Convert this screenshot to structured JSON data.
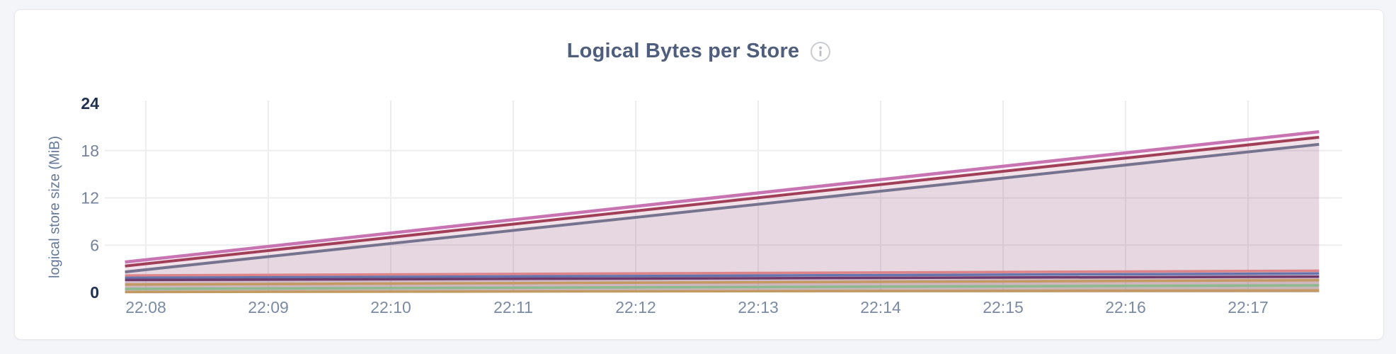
{
  "page": {
    "background": "#f4f5f8",
    "card_background": "#ffffff",
    "card_border": "#e7e7ec"
  },
  "header": {
    "title": "Logical Bytes per Store",
    "info_icon": "info"
  },
  "chart_data": {
    "type": "area",
    "title": "Logical Bytes per Store",
    "ylabel": "logical store size (MiB)",
    "xlabel": "",
    "ylim": [
      0,
      24
    ],
    "grid": true,
    "legend": "none",
    "fill_alpha": 0.09,
    "gridline_color": "#ededf0",
    "x_unit": "time (HH:MM), 1 minute per tick",
    "y_ticks": [
      {
        "value": 24,
        "emphasis": true
      },
      {
        "value": 18,
        "emphasis": false
      },
      {
        "value": 12,
        "emphasis": false
      },
      {
        "value": 6,
        "emphasis": false
      },
      {
        "value": 0,
        "emphasis": true
      }
    ],
    "y_gridlines": [
      18,
      12,
      6
    ],
    "x_ticks": [
      {
        "label": "22:08",
        "t": 0
      },
      {
        "label": "22:09",
        "t": 1
      },
      {
        "label": "22:10",
        "t": 2
      },
      {
        "label": "22:11",
        "t": 3
      },
      {
        "label": "22:12",
        "t": 4
      },
      {
        "label": "22:13",
        "t": 5
      },
      {
        "label": "22:14",
        "t": 6
      },
      {
        "label": "22:15",
        "t": 7
      },
      {
        "label": "22:16",
        "t": 8
      },
      {
        "label": "22:17",
        "t": 9
      }
    ],
    "data_window": {
      "t_start": -0.17,
      "t_end": 9.58
    },
    "series": [
      {
        "name": "series-1-pink",
        "color": "#c874b3",
        "stroke_width": 4.5,
        "points": [
          {
            "t": -0.17,
            "mib": 3.85
          },
          {
            "t": 9.58,
            "mib": 20.4
          }
        ]
      },
      {
        "name": "series-2-maroon",
        "color": "#a23f58",
        "stroke_width": 4.0,
        "points": [
          {
            "t": -0.17,
            "mib": 3.35
          },
          {
            "t": 9.58,
            "mib": 19.7
          }
        ]
      },
      {
        "name": "series-3-slate",
        "color": "#76738f",
        "stroke_width": 4.0,
        "points": [
          {
            "t": -0.17,
            "mib": 2.6
          },
          {
            "t": 9.58,
            "mib": 18.8
          }
        ]
      },
      {
        "name": "series-4-salmon",
        "color": "#dd8489",
        "stroke_width": 3.5,
        "points": [
          {
            "t": -0.17,
            "mib": 2.15
          },
          {
            "t": 9.58,
            "mib": 2.75
          }
        ]
      },
      {
        "name": "series-5-blue",
        "color": "#6674ae",
        "stroke_width": 3.5,
        "points": [
          {
            "t": -0.17,
            "mib": 1.85
          },
          {
            "t": 9.58,
            "mib": 2.4
          }
        ]
      },
      {
        "name": "series-6-plum",
        "color": "#6f3a69",
        "stroke_width": 3.5,
        "points": [
          {
            "t": -0.17,
            "mib": 1.58
          },
          {
            "t": 9.58,
            "mib": 2.0
          }
        ]
      },
      {
        "name": "series-7-amber",
        "color": "#c49a62",
        "stroke_width": 3.5,
        "points": [
          {
            "t": -0.17,
            "mib": 1.0
          },
          {
            "t": 9.58,
            "mib": 1.55
          }
        ]
      },
      {
        "name": "series-8-green",
        "color": "#8cba8e",
        "stroke_width": 3.5,
        "points": [
          {
            "t": -0.17,
            "mib": 0.45
          },
          {
            "t": 9.58,
            "mib": 0.9
          }
        ]
      },
      {
        "name": "series-9-tan",
        "color": "#c29960",
        "stroke_width": 3.5,
        "points": [
          {
            "t": -0.17,
            "mib": 0.05
          },
          {
            "t": 9.58,
            "mib": 0.25
          }
        ]
      }
    ]
  }
}
